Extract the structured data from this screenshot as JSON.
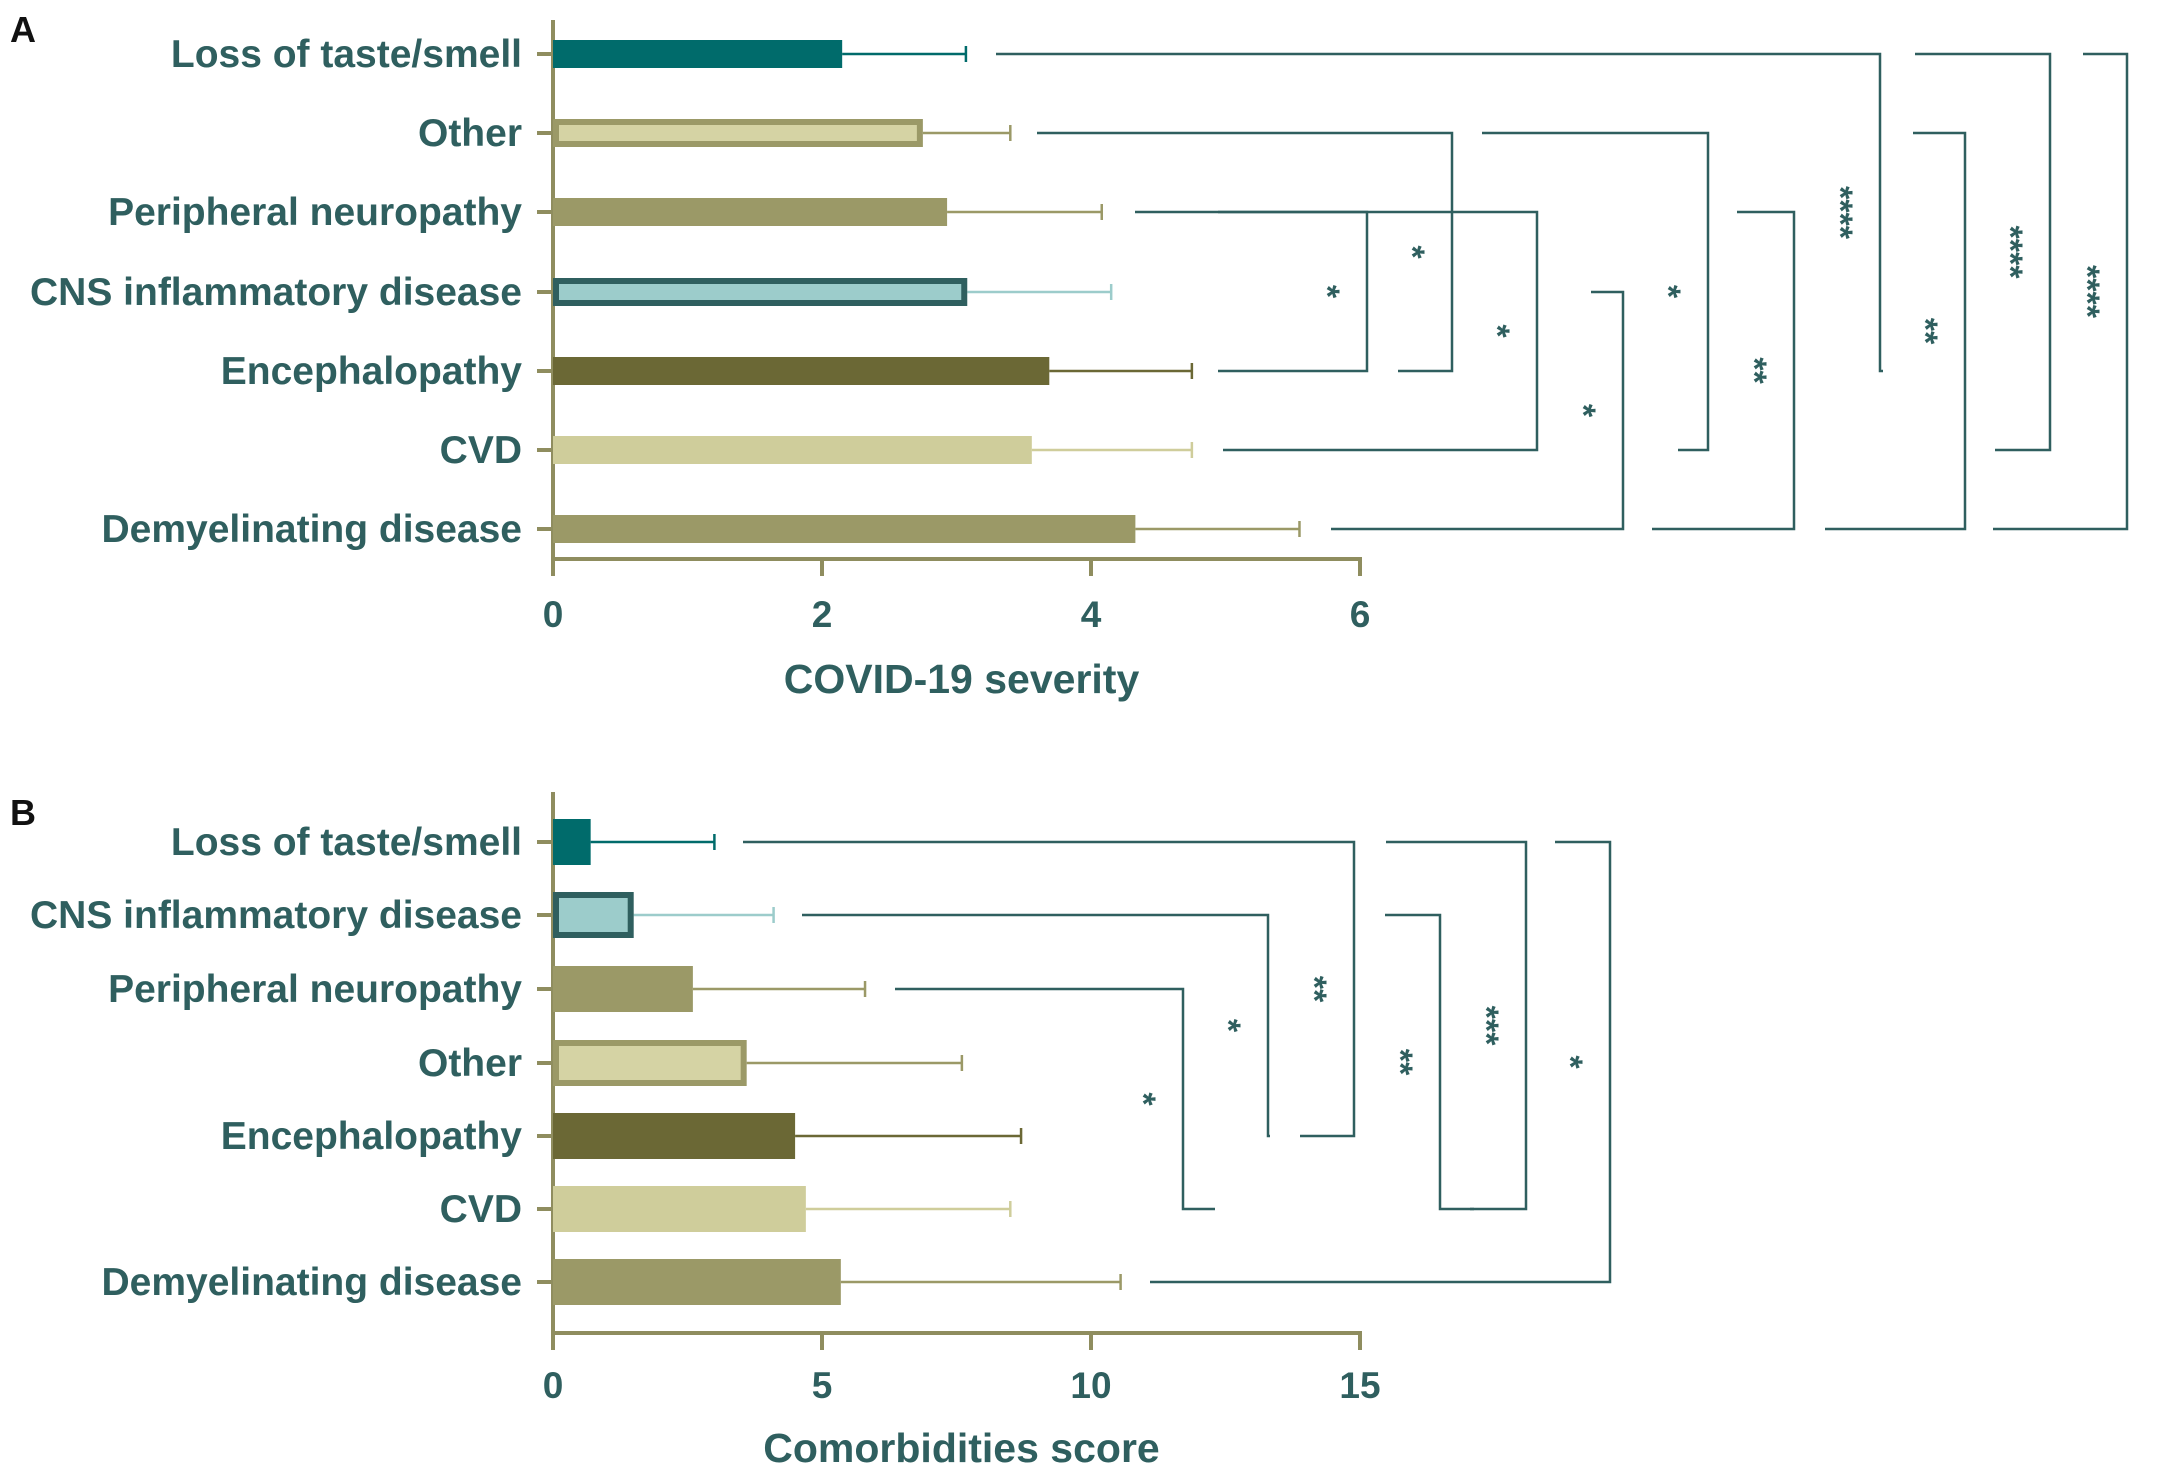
{
  "colors": {
    "axis": "#8f8d5f",
    "text": "#2f5f5f",
    "bracket": "#2f5f5f"
  },
  "chart_data": [
    {
      "panel": "A",
      "type": "bar",
      "orientation": "horizontal",
      "xlabel": "COVID-19 severity",
      "xlim": [
        0,
        6
      ],
      "xticks": [
        0,
        2,
        4,
        6
      ],
      "categories": [
        "Loss of taste/smell",
        "Other",
        "Peripheral neuropathy",
        "CNS inflammatory disease",
        "Encephalopathy",
        "CVD",
        "Demyelinating disease"
      ],
      "values": [
        2.15,
        2.75,
        2.93,
        3.08,
        3.69,
        3.56,
        4.33
      ],
      "errors": [
        0.92,
        0.65,
        1.15,
        1.07,
        1.06,
        1.19,
        1.22
      ],
      "fills": [
        "#006b6b",
        "#d5d3a4",
        "#9b9967",
        "#9ccccb",
        "#6b6835",
        "#cfcd9b",
        "#9b9967"
      ],
      "strokes": [
        "#006b6b",
        "#9b9967",
        "#9b9967",
        "#2f5f5f",
        "#6b6835",
        "#cfcd9b",
        "#9b9967"
      ],
      "comparisons": [
        {
          "a": 2,
          "b": 4,
          "label": "*"
        },
        {
          "a": 1,
          "b": 4,
          "label": "*"
        },
        {
          "a": 2,
          "b": 5,
          "label": "*"
        },
        {
          "a": 3,
          "b": 6,
          "label": "*"
        },
        {
          "a": 1,
          "b": 5,
          "label": "*"
        },
        {
          "a": 2,
          "b": 6,
          "label": "**"
        },
        {
          "a": 0,
          "b": 4,
          "label": "****"
        },
        {
          "a": 1,
          "b": 6,
          "label": "**"
        },
        {
          "a": 0,
          "b": 5,
          "label": "****"
        },
        {
          "a": 0,
          "b": 6,
          "label": "****"
        }
      ]
    },
    {
      "panel": "B",
      "type": "bar",
      "orientation": "horizontal",
      "xlabel": "Comorbidities score",
      "xlim": [
        0,
        15
      ],
      "xticks": [
        0,
        5,
        10,
        15
      ],
      "categories": [
        "Loss of taste/smell",
        "CNS inflammatory disease",
        "Peripheral neuropathy",
        "Other",
        "Encephalopathy",
        "CVD",
        "Demyelinating disease"
      ],
      "values": [
        0.7,
        1.5,
        2.6,
        3.6,
        4.5,
        4.7,
        5.35
      ],
      "errors": [
        2.3,
        2.6,
        3.2,
        4.0,
        4.2,
        3.8,
        5.2
      ],
      "fills": [
        "#006b6b",
        "#9ccccb",
        "#9b9967",
        "#d5d3a4",
        "#6b6835",
        "#cfcd9b",
        "#9b9967"
      ],
      "strokes": [
        "#006b6b",
        "#2f5f5f",
        "#9b9967",
        "#9b9967",
        "#6b6835",
        "#cfcd9b",
        "#9b9967"
      ],
      "comparisons": [
        {
          "a": 2,
          "b": 5,
          "label": "*"
        },
        {
          "a": 1,
          "b": 4,
          "label": "*"
        },
        {
          "a": 0,
          "b": 4,
          "label": "**"
        },
        {
          "a": 1,
          "b": 5,
          "label": "**"
        },
        {
          "a": 0,
          "b": 5,
          "label": "***"
        },
        {
          "a": 0,
          "b": 6,
          "label": "*"
        }
      ]
    }
  ]
}
